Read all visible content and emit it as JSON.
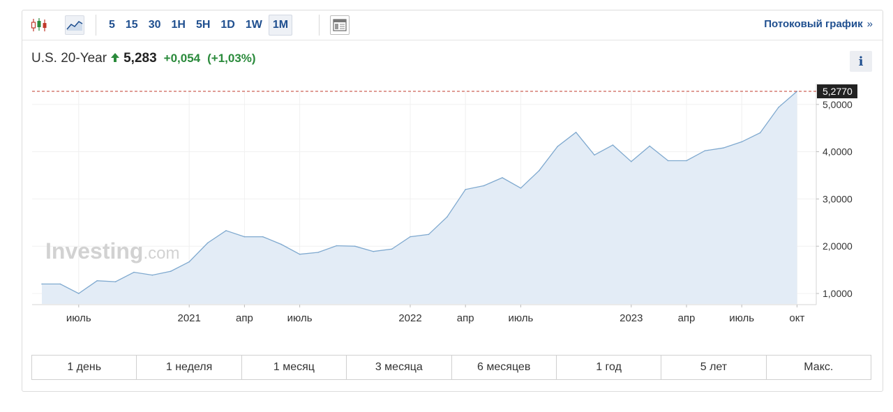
{
  "toolbar": {
    "chart_types": [
      {
        "name": "candlestick-chart-icon",
        "color": "#c0392b"
      },
      {
        "name": "line-chart-icon",
        "color": "#1f4f8f"
      }
    ],
    "intervals": [
      "5",
      "15",
      "30",
      "1H",
      "5H",
      "1D",
      "1W",
      "1M"
    ],
    "active_interval": "1M",
    "layout_icon": "layout-grid-icon",
    "stream_label": "Потоковый график",
    "stream_arrow": "»"
  },
  "quote": {
    "name": "U.S. 20-Year",
    "price": "5,283",
    "change": "+0,054",
    "change_pct": "(+1,03%)",
    "direction": "up",
    "up_color": "#2a8a3b"
  },
  "info_label": "i",
  "watermark": {
    "brand": "Investing",
    "suffix": ".com"
  },
  "range_buttons": [
    "1 день",
    "1 неделя",
    "1 месяц",
    "3 месяца",
    "6 месяцев",
    "1 год",
    "5 лет",
    "Макс."
  ],
  "chart_data": {
    "type": "area",
    "x": [
      "2020-05",
      "2020-06",
      "2020-07",
      "2020-08",
      "2020-09",
      "2020-10",
      "2020-11",
      "2020-12",
      "2021-01",
      "2021-02",
      "2021-03",
      "2021-04",
      "2021-05",
      "2021-06",
      "2021-07",
      "2021-08",
      "2021-09",
      "2021-10",
      "2021-11",
      "2021-12",
      "2022-01",
      "2022-02",
      "2022-03",
      "2022-04",
      "2022-05",
      "2022-06",
      "2022-07",
      "2022-08",
      "2022-09",
      "2022-10",
      "2022-11",
      "2022-12",
      "2023-01",
      "2023-02",
      "2023-03",
      "2023-04",
      "2023-05",
      "2023-06",
      "2023-07",
      "2023-08",
      "2023-09",
      "2023-10"
    ],
    "values": [
      1.2,
      1.2,
      1.0,
      1.27,
      1.25,
      1.45,
      1.39,
      1.47,
      1.67,
      2.07,
      2.33,
      2.2,
      2.2,
      2.04,
      1.83,
      1.87,
      2.01,
      2.0,
      1.89,
      1.94,
      2.2,
      2.25,
      2.62,
      3.2,
      3.28,
      3.45,
      3.23,
      3.6,
      4.11,
      4.41,
      3.93,
      4.14,
      3.79,
      4.12,
      3.81,
      3.81,
      4.02,
      4.08,
      4.21,
      4.4,
      4.94,
      5.277
    ],
    "y_ticks": [
      "1,0000",
      "2,0000",
      "3,0000",
      "4,0000",
      "5,0000"
    ],
    "y_tick_values": [
      1,
      2,
      3,
      4,
      5
    ],
    "x_ticks": [
      {
        "label": "июль",
        "x": "2020-07"
      },
      {
        "label": "2021",
        "x": "2021-01"
      },
      {
        "label": "апр",
        "x": "2021-04"
      },
      {
        "label": "июль",
        "x": "2021-07"
      },
      {
        "label": "2022",
        "x": "2022-01"
      },
      {
        "label": "апр",
        "x": "2022-04"
      },
      {
        "label": "июль",
        "x": "2022-07"
      },
      {
        "label": "2023",
        "x": "2023-01"
      },
      {
        "label": "апр",
        "x": "2023-04"
      },
      {
        "label": "июль",
        "x": "2023-07"
      },
      {
        "label": "окт",
        "x": "2023-10"
      }
    ],
    "last_value_label": "5,2770",
    "last_value": 5.277,
    "ylim": [
      0.8,
      5.3
    ],
    "grid": true,
    "line_color": "#7fa9cf",
    "fill_color": "#e3ecf6",
    "reference_line_color": "#c0392b"
  }
}
